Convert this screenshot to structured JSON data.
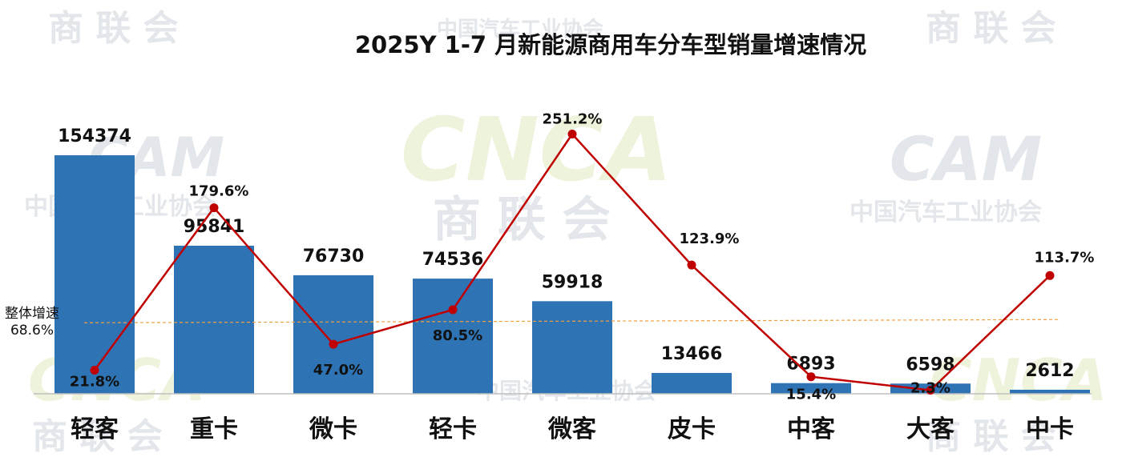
{
  "watermark": {
    "brand_text": "商 联 会",
    "org_text": "中国汽车工业协会",
    "logo_text": "CNCA",
    "logo2_text": "CAM"
  },
  "reference": {
    "label": "整体增速",
    "value_label": "68.6%",
    "color": "#F0A040"
  },
  "chart_data": {
    "type": "bar",
    "title": "2025Y 1-7 月新能源商用车分车型销量增速情况",
    "categories": [
      "轻客",
      "重卡",
      "微卡",
      "轻卡",
      "微客",
      "皮卡",
      "中客",
      "大客",
      "中卡"
    ],
    "series": [
      {
        "type": "bar",
        "values": [
          154374,
          95841,
          76730,
          74536,
          59918,
          13466,
          6893,
          6598,
          2612
        ],
        "labels": [
          "154374",
          "95841",
          "76730",
          "74536",
          "59918",
          "13466",
          "6893",
          "6598",
          "2612"
        ],
        "color": "#2E74B5"
      },
      {
        "type": "line",
        "values": [
          21.8,
          179.6,
          47.0,
          80.5,
          251.2,
          123.9,
          15.4,
          2.3,
          113.7
        ],
        "labels": [
          "21.8%",
          "179.6%",
          "47.0%",
          "80.5%",
          "251.2%",
          "123.9%",
          "15.4%",
          "2.3%",
          "113.7%"
        ],
        "color": "#C00000"
      }
    ],
    "reference_line": 68.6,
    "ylim_bar": [
      0,
      160000
    ],
    "ylim_line": [
      0,
      270
    ],
    "legend": "none",
    "grid": false
  }
}
